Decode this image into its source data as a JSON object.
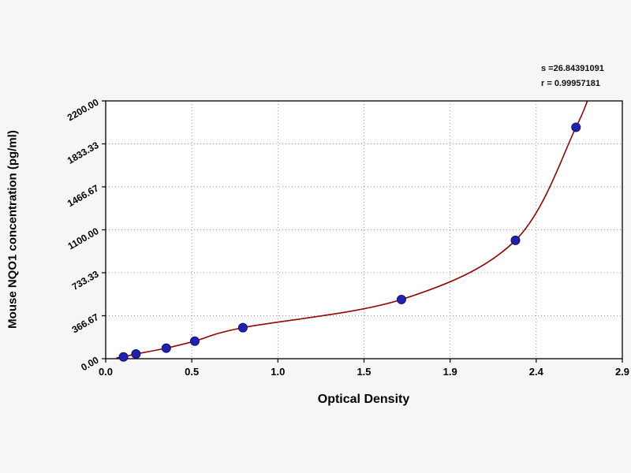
{
  "chart_data": {
    "type": "scatter",
    "title": "",
    "xlabel": "Optical Density",
    "ylabel": "Mouse NQO1 concentration (pg/ml)",
    "xlim": [
      0,
      2.9
    ],
    "ylim": [
      0,
      2200
    ],
    "x_tick_labels": [
      "0.0",
      "0.5",
      "1.0",
      "1.5",
      "1.9",
      "2.4",
      "2.9"
    ],
    "y_ticks": [
      {
        "value": 0,
        "label": "0.00"
      },
      {
        "value": 366.67,
        "label": "366.67"
      },
      {
        "value": 733.33,
        "label": "733.33"
      },
      {
        "value": 1100.0,
        "label": "1100.00"
      },
      {
        "value": 1466.67,
        "label": "1466.67"
      },
      {
        "value": 1833.33,
        "label": "1833.33"
      },
      {
        "value": 2200.0,
        "label": "2200.00"
      }
    ],
    "grid": "dotted",
    "legend_position": "none",
    "series": [
      {
        "name": "standard-curve-points",
        "points": [
          {
            "x": 0.1,
            "y": 15
          },
          {
            "x": 0.17,
            "y": 40
          },
          {
            "x": 0.34,
            "y": 90
          },
          {
            "x": 0.5,
            "y": 150
          },
          {
            "x": 0.77,
            "y": 265
          },
          {
            "x": 1.66,
            "y": 505
          },
          {
            "x": 2.3,
            "y": 1010
          },
          {
            "x": 2.64,
            "y": 1975
          }
        ]
      }
    ],
    "curve_extension": {
      "start": {
        "x": 0.06,
        "y": 8
      },
      "end": {
        "x": 2.73,
        "y": 2330
      }
    },
    "stats": {
      "line1": "s =26.84391091",
      "line2": "r = 0.99957181"
    },
    "colors": {
      "curve": "#990000",
      "point_fill": "#2121b0",
      "point_stroke": "#10106a",
      "grid": "#999999",
      "frame": "#000000",
      "plot_bg": "#ffffff",
      "page_bg": "#f6f6f6",
      "text": "#000000"
    }
  }
}
